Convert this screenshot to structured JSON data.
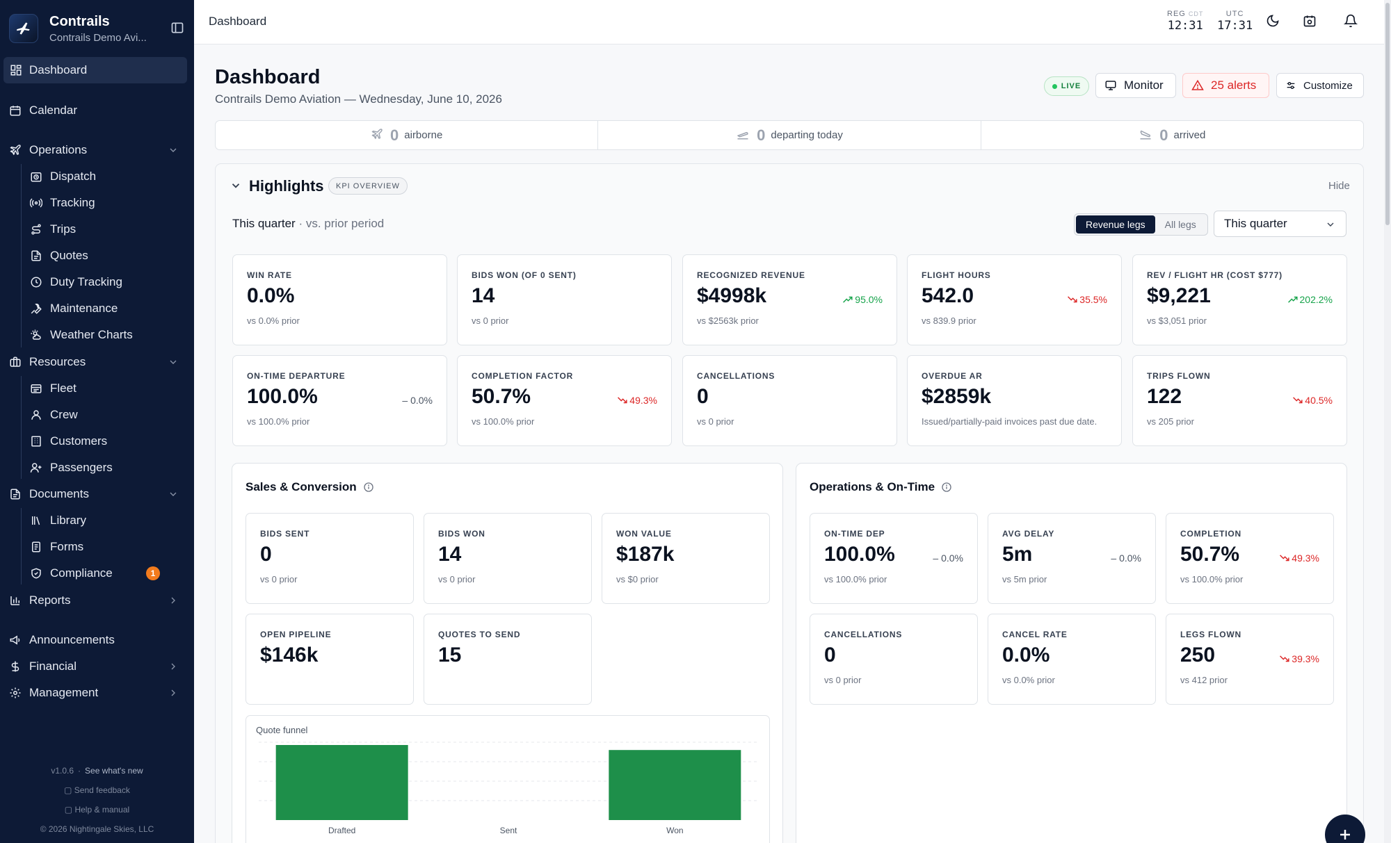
{
  "app": {
    "brand_name": "Contrails",
    "brand_sub": "Contrails Demo Avi..."
  },
  "sidebar": {
    "items": [
      {
        "label": "Dashboard",
        "icon": "grid-icon"
      },
      {
        "label": "Calendar",
        "icon": "calendar-icon"
      },
      {
        "label": "Operations",
        "icon": "plane-icon"
      },
      {
        "label": "Dispatch",
        "icon": "dispatch-icon"
      },
      {
        "label": "Tracking",
        "icon": "radar-icon"
      },
      {
        "label": "Trips",
        "icon": "route-icon"
      },
      {
        "label": "Quotes",
        "icon": "document-icon"
      },
      {
        "label": "Duty Tracking",
        "icon": "clock-icon"
      },
      {
        "label": "Maintenance",
        "icon": "wrench-icon"
      },
      {
        "label": "Weather Charts",
        "icon": "weather-icon"
      },
      {
        "label": "Resources",
        "icon": "briefcase-icon"
      },
      {
        "label": "Fleet",
        "icon": "fleet-icon"
      },
      {
        "label": "Crew",
        "icon": "users-icon"
      },
      {
        "label": "Customers",
        "icon": "building-icon"
      },
      {
        "label": "Passengers",
        "icon": "passenger-icon"
      },
      {
        "label": "Documents",
        "icon": "document-icon"
      },
      {
        "label": "Library",
        "icon": "library-icon"
      },
      {
        "label": "Forms",
        "icon": "form-icon"
      },
      {
        "label": "Compliance",
        "icon": "shield-icon",
        "badge": "1"
      },
      {
        "label": "Reports",
        "icon": "bar-chart-icon"
      },
      {
        "label": "Announcements",
        "icon": "megaphone-icon"
      },
      {
        "label": "Financial",
        "icon": "dollar-icon"
      },
      {
        "label": "Management",
        "icon": "gear-icon"
      }
    ],
    "footer": {
      "version": "v1.0.6",
      "whats_new": "See what's new",
      "feedback": "Send feedback",
      "help": "Help & manual",
      "copyright": "© 2026 Nightingale Skies, LLC"
    }
  },
  "topbar": {
    "title": "Dashboard",
    "clock_reg_label": "REG",
    "clock_reg_tz": "CDT",
    "clock_reg_time": "12:31",
    "clock_utc_label": "UTC",
    "clock_utc_time": "17:31"
  },
  "header": {
    "title": "Dashboard",
    "subtitle": "Contrails Demo Aviation — Wednesday, June 10, 2026",
    "live": "LIVE",
    "monitor": "Monitor",
    "alerts": "25 alerts",
    "customize": "Customize"
  },
  "strip": [
    {
      "count": "0",
      "label": "airborne"
    },
    {
      "count": "0",
      "label": "departing today"
    },
    {
      "count": "0",
      "label": "arrived"
    }
  ],
  "highlights": {
    "title": "Highlights",
    "pill": "KPI OVERVIEW",
    "hide": "Hide",
    "period": "This quarter",
    "period_sub": "· vs. prior period",
    "seg_revenue": "Revenue legs",
    "seg_all": "All legs",
    "select_value": "This quarter",
    "kpis": [
      {
        "title": "WIN RATE",
        "value": "0.0%",
        "prior": "vs 0.0% prior",
        "delta": "",
        "trend": "none"
      },
      {
        "title": "BIDS WON (OF 0 SENT)",
        "value": "14",
        "prior": "vs 0 prior",
        "delta": "",
        "trend": "none"
      },
      {
        "title": "RECOGNIZED REVENUE",
        "value": "$4998k",
        "prior": "vs $2563k prior",
        "delta": "95.0%",
        "trend": "up"
      },
      {
        "title": "FLIGHT HOURS",
        "value": "542.0",
        "prior": "vs 839.9 prior",
        "delta": "35.5%",
        "trend": "down"
      },
      {
        "title": "REV / FLIGHT HR (COST $777)",
        "value": "$9,221",
        "prior": "vs $3,051 prior",
        "delta": "202.2%",
        "trend": "up"
      },
      {
        "title": "ON-TIME DEPARTURE",
        "value": "100.0%",
        "prior": "vs 100.0% prior",
        "delta": "– 0.0%",
        "trend": "flat"
      },
      {
        "title": "COMPLETION FACTOR",
        "value": "50.7%",
        "prior": "vs 100.0% prior",
        "delta": "49.3%",
        "trend": "down"
      },
      {
        "title": "CANCELLATIONS",
        "value": "0",
        "prior": "vs 0 prior",
        "delta": "",
        "trend": "none"
      },
      {
        "title": "OVERDUE AR",
        "value": "$2859k",
        "prior": "Issued/partially-paid invoices past due date.",
        "delta": "",
        "trend": "none"
      },
      {
        "title": "TRIPS FLOWN",
        "value": "122",
        "prior": "vs 205 prior",
        "delta": "40.5%",
        "trend": "down"
      }
    ]
  },
  "sales": {
    "title": "Sales & Conversion",
    "kpis": [
      {
        "title": "BIDS SENT",
        "value": "0",
        "prior": "vs 0 prior",
        "delta": "",
        "trend": "none"
      },
      {
        "title": "BIDS WON",
        "value": "14",
        "prior": "vs 0 prior",
        "delta": "",
        "trend": "none"
      },
      {
        "title": "WON VALUE",
        "value": "$187k",
        "prior": "vs $0 prior",
        "delta": "",
        "trend": "none"
      },
      {
        "title": "OPEN PIPELINE",
        "value": "$146k",
        "prior": "",
        "delta": "",
        "trend": "none"
      },
      {
        "title": "QUOTES TO SEND",
        "value": "15",
        "prior": "",
        "delta": "",
        "trend": "none"
      }
    ]
  },
  "ops": {
    "title": "Operations & On-Time",
    "kpis": [
      {
        "title": "ON-TIME DEP",
        "value": "100.0%",
        "prior": "vs 100.0% prior",
        "delta": "– 0.0%",
        "trend": "flat"
      },
      {
        "title": "AVG DELAY",
        "value": "5m",
        "prior": "vs 5m prior",
        "delta": "– 0.0%",
        "trend": "flat"
      },
      {
        "title": "COMPLETION",
        "value": "50.7%",
        "prior": "vs 100.0% prior",
        "delta": "49.3%",
        "trend": "down"
      },
      {
        "title": "CANCELLATIONS",
        "value": "0",
        "prior": "vs 0 prior",
        "delta": "",
        "trend": "none"
      },
      {
        "title": "CANCEL RATE",
        "value": "0.0%",
        "prior": "vs 0.0% prior",
        "delta": "",
        "trend": "none"
      },
      {
        "title": "LEGS FLOWN",
        "value": "250",
        "prior": "vs 412 prior",
        "delta": "39.3%",
        "trend": "down"
      }
    ]
  },
  "funnel": {
    "title": "Quote funnel",
    "categories": [
      "Drafted",
      "Sent",
      "Won"
    ],
    "values": [
      15,
      0,
      14
    ],
    "ymax": 15,
    "bar_color": "#1e8f4a"
  },
  "colors": {
    "sidebar_bg": "#0d1a36",
    "up": "#16a34a",
    "down": "#dc2626",
    "alert": "#dc2626",
    "badge": "#f27b1d"
  }
}
